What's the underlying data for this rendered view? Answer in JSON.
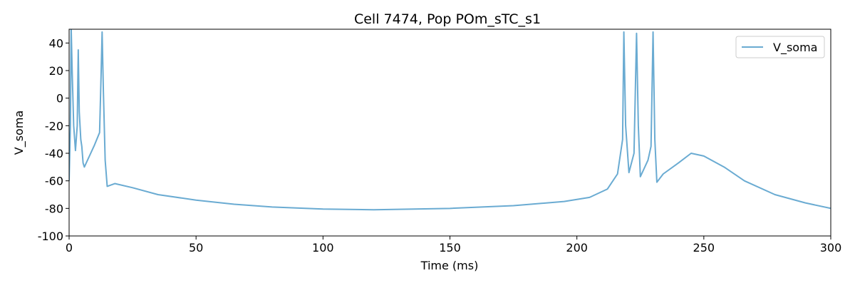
{
  "chart_data": {
    "type": "line",
    "title": "Cell 7474, Pop POm_sTC_s1",
    "xlabel": "Time (ms)",
    "ylabel": "V_soma",
    "x": [
      0,
      0.5,
      0.8,
      1.2,
      1.8,
      2.5,
      3.2,
      3.6,
      4.0,
      4.6,
      5.0,
      5.5,
      6.0,
      8,
      10,
      12,
      12.5,
      13.0,
      13.5,
      14.2,
      15,
      18,
      25,
      35,
      50,
      65,
      80,
      100,
      120,
      150,
      175,
      195,
      205,
      212,
      216,
      218,
      218.5,
      219.2,
      220.5,
      222.5,
      223.5,
      224.2,
      225,
      228,
      229.2,
      230,
      230.7,
      231.5,
      234,
      240,
      245,
      250,
      258,
      266,
      278,
      290,
      300
    ],
    "series": [
      {
        "name": "V_soma",
        "color": "#6aabd2",
        "values": [
          -60,
          -20,
          52,
          20,
          -20,
          -38,
          -20,
          35,
          -10,
          -30,
          -35,
          -47,
          -50,
          -42,
          -34,
          -25,
          10,
          48,
          5,
          -45,
          -64,
          -62,
          -65,
          -70,
          -74,
          -77,
          -79,
          -80.5,
          -81,
          -80,
          -78,
          -75,
          -72,
          -66,
          -55,
          -30,
          48,
          -20,
          -54,
          -40,
          47,
          -20,
          -57,
          -45,
          -35,
          48,
          -30,
          -61,
          -55,
          -47,
          -40,
          -42,
          -50,
          -60,
          -70,
          -76,
          -80
        ]
      }
    ],
    "xlim": [
      0,
      300
    ],
    "xticks": [
      0,
      50,
      100,
      150,
      200,
      250,
      300
    ],
    "ylim": [
      -100,
      50
    ],
    "yticks": [
      -100,
      -80,
      -60,
      -40,
      -20,
      0,
      20,
      40
    ],
    "legend": "upper right"
  }
}
